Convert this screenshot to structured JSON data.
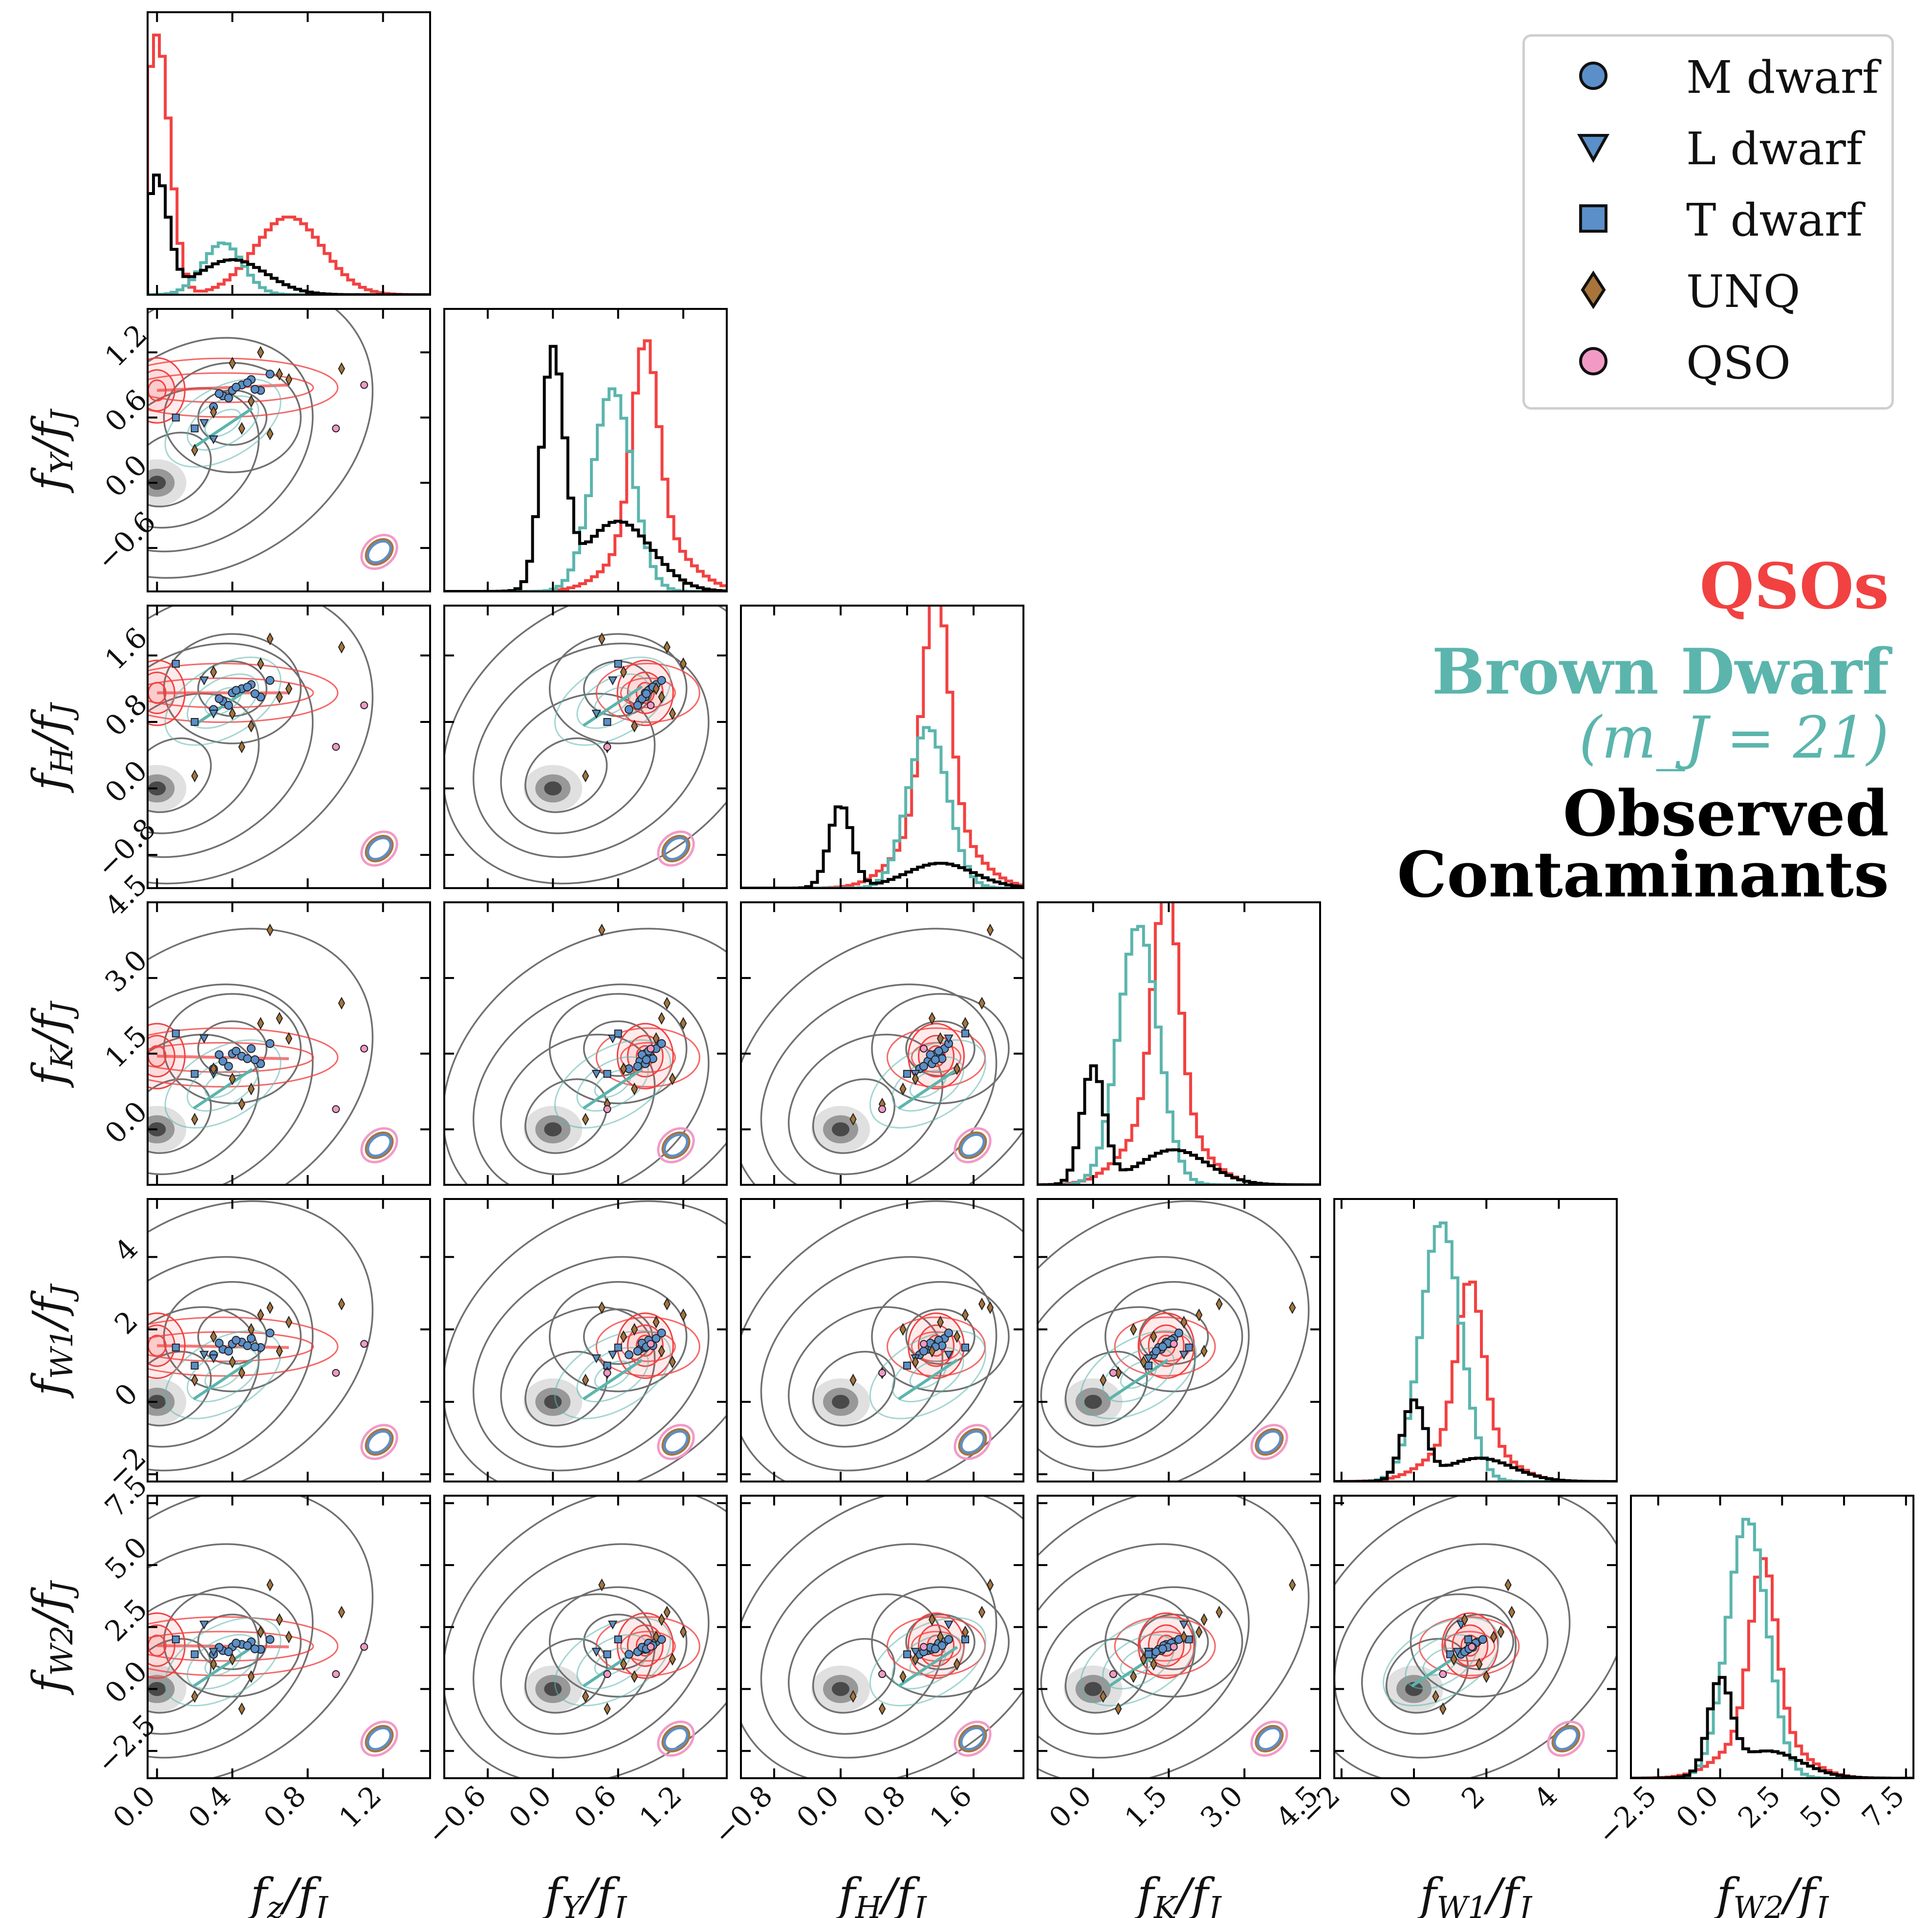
{
  "chart_data": {
    "type": "corner",
    "parameters": [
      {
        "key": "fz",
        "label": "f_z/f_J",
        "range": [
          -0.05,
          1.45
        ],
        "ticks": [
          "0.0",
          "0.4",
          "0.8",
          "1.2"
        ],
        "tick_values": [
          0,
          0.4,
          0.8,
          1.2
        ]
      },
      {
        "key": "fY",
        "label": "f_Y/f_J",
        "range": [
          -1.0,
          1.6
        ],
        "ticks": [
          "−0.6",
          "0.0",
          "0.6",
          "1.2"
        ],
        "tick_values": [
          -0.6,
          0,
          0.6,
          1.2
        ]
      },
      {
        "key": "fH",
        "label": "f_H/f_J",
        "range": [
          -1.2,
          2.2
        ],
        "ticks": [
          "−0.8",
          "0.0",
          "0.8",
          "1.6"
        ],
        "tick_values": [
          -0.8,
          0,
          0.8,
          1.6
        ]
      },
      {
        "key": "fK",
        "label": "f_K/f_J",
        "range": [
          -1.1,
          4.5
        ],
        "ticks": [
          "0.0",
          "1.5",
          "3.0",
          "4.5"
        ],
        "tick_values": [
          0,
          1.5,
          3.0,
          4.5
        ]
      },
      {
        "key": "fW1",
        "label": "f_W1/f_J",
        "range": [
          -2.2,
          5.6
        ],
        "ticks": [
          "−2",
          "0",
          "2",
          "4"
        ],
        "tick_values": [
          -2,
          0,
          2,
          4
        ]
      },
      {
        "key": "fW2",
        "label": "f_W2/f_J",
        "range": [
          -3.6,
          7.8
        ],
        "ticks": [
          "−2.5",
          "0.0",
          "2.5",
          "5.0",
          "7.5"
        ],
        "tick_values": [
          -2.5,
          0,
          2.5,
          5,
          7.5
        ]
      }
    ],
    "axis_labels": {
      "x": [
        "f_z/f_J",
        "f_Y/f_J",
        "f_H/f_J",
        "f_K/f_J",
        "f_W1/f_J",
        "f_W2/f_J"
      ],
      "y": [
        "f_Y/f_J",
        "f_H/f_J",
        "f_K/f_J",
        "f_W1/f_J",
        "f_W2/f_J"
      ]
    },
    "populations": [
      {
        "name": "QSOs",
        "color": "#f24141",
        "center": [
          0.0,
          0.85,
          1.15,
          1.45,
          1.55,
          1.75
        ],
        "secondary_center": [
          0.7,
          0.9,
          1.15,
          1.4,
          1.5,
          1.7
        ],
        "peak_heights": [
          1.0,
          0.75,
          0.9,
          0.9,
          0.6,
          0.65
        ]
      },
      {
        "name": "Brown Dwarf",
        "color": "#5bb5ad",
        "center": [
          0.35,
          0.55,
          1.05,
          0.9,
          0.75,
          1.1
        ],
        "peak_heights": [
          0.2,
          0.78,
          0.62,
          1.0,
          1.0,
          1.0
        ]
      },
      {
        "name": "Observed Contaminants",
        "color": "#000000",
        "center": [
          0.0,
          0.0,
          0.0,
          0.0,
          0.0,
          0.0
        ],
        "secondary_center": [
          0.4,
          0.6,
          1.2,
          1.6,
          1.8,
          1.9
        ],
        "peak_heights": [
          0.45,
          0.9,
          0.32,
          0.45,
          0.3,
          0.35
        ]
      }
    ],
    "scatter_points": [
      {
        "type": "M dwarf",
        "values": [
          0.4,
          0.85,
          1.15,
          1.5,
          1.6,
          1.7
        ]
      },
      {
        "type": "M dwarf",
        "values": [
          0.45,
          0.9,
          1.2,
          1.45,
          1.65,
          1.8
        ]
      },
      {
        "type": "M dwarf",
        "values": [
          0.35,
          0.8,
          1.05,
          1.35,
          1.45,
          1.55
        ]
      },
      {
        "type": "M dwarf",
        "values": [
          0.5,
          0.95,
          1.25,
          1.6,
          1.75,
          1.9
        ]
      },
      {
        "type": "M dwarf",
        "values": [
          0.3,
          0.7,
          0.95,
          1.2,
          1.3,
          1.4
        ]
      },
      {
        "type": "M dwarf",
        "values": [
          0.55,
          0.85,
          1.1,
          1.3,
          1.5,
          1.6
        ]
      },
      {
        "type": "M dwarf",
        "values": [
          0.42,
          0.88,
          1.18,
          1.55,
          1.7,
          1.85
        ]
      },
      {
        "type": "M dwarf",
        "values": [
          0.38,
          0.78,
          1.0,
          1.25,
          1.4,
          1.5
        ]
      },
      {
        "type": "M dwarf",
        "values": [
          0.6,
          1.0,
          1.3,
          1.7,
          1.9,
          2.0
        ]
      },
      {
        "type": "M dwarf",
        "values": [
          0.48,
          0.92,
          1.22,
          1.4,
          1.55,
          1.75
        ]
      },
      {
        "type": "M dwarf",
        "values": [
          0.33,
          0.82,
          1.08,
          1.48,
          1.62,
          1.68
        ]
      },
      {
        "type": "M dwarf",
        "values": [
          0.52,
          0.86,
          1.14,
          1.38,
          1.52,
          1.62
        ]
      },
      {
        "type": "L dwarf",
        "values": [
          0.3,
          0.4,
          0.9,
          1.1,
          1.2,
          1.5
        ]
      },
      {
        "type": "L dwarf",
        "values": [
          0.25,
          0.55,
          1.3,
          1.8,
          1.3,
          2.6
        ]
      },
      {
        "type": "T dwarf",
        "values": [
          0.1,
          0.6,
          1.5,
          1.9,
          1.5,
          2.0
        ]
      },
      {
        "type": "T dwarf",
        "values": [
          0.2,
          0.5,
          0.8,
          1.1,
          1.0,
          1.4
        ]
      },
      {
        "type": "UNQ",
        "values": [
          0.55,
          1.2,
          1.5,
          2.1,
          2.4,
          2.3
        ]
      },
      {
        "type": "UNQ",
        "values": [
          0.2,
          0.3,
          0.15,
          0.2,
          0.6,
          -0.3
        ]
      },
      {
        "type": "UNQ",
        "values": [
          0.6,
          0.45,
          1.8,
          3.95,
          2.6,
          4.2
        ]
      },
      {
        "type": "UNQ",
        "values": [
          0.98,
          1.05,
          1.7,
          2.5,
          2.7,
          3.1
        ]
      },
      {
        "type": "UNQ",
        "values": [
          0.3,
          0.65,
          1.4,
          1.2,
          1.8,
          1.0
        ]
      },
      {
        "type": "UNQ",
        "values": [
          0.5,
          0.75,
          0.75,
          0.8,
          2.0,
          0.5
        ]
      },
      {
        "type": "UNQ",
        "values": [
          0.65,
          1.0,
          1.1,
          2.2,
          1.4,
          2.8
        ]
      },
      {
        "type": "UNQ",
        "values": [
          0.45,
          0.5,
          0.5,
          0.5,
          0.8,
          -0.8
        ]
      },
      {
        "type": "UNQ",
        "values": [
          0.7,
          0.95,
          1.2,
          1.8,
          2.2,
          2.1
        ]
      },
      {
        "type": "UNQ",
        "values": [
          0.4,
          1.1,
          0.9,
          1.0,
          1.1,
          1.2
        ]
      },
      {
        "type": "QSO",
        "values": [
          1.1,
          0.9,
          1.0,
          1.6,
          1.6,
          1.7
        ]
      },
      {
        "type": "QSO",
        "values": [
          0.95,
          0.5,
          0.5,
          0.4,
          0.8,
          0.6
        ]
      }
    ],
    "legend": {
      "placement": "top-right",
      "entries": [
        {
          "label": "M dwarf",
          "marker": "circle",
          "color": "#5b8fc9"
        },
        {
          "label": "L dwarf",
          "marker": "triangle-down",
          "color": "#5b8fc9"
        },
        {
          "label": "T dwarf",
          "marker": "square",
          "color": "#5b8fc9"
        },
        {
          "label": "UNQ",
          "marker": "diamond",
          "color": "#a8743a"
        },
        {
          "label": "QSO",
          "marker": "circle",
          "color": "#f29ac6"
        }
      ]
    }
  },
  "figure_title": {
    "line1": "QSOs",
    "line2": "Brown Dwarf",
    "line3": "(m_J = 21)",
    "line4": "Observed",
    "line5": "Contaminants"
  },
  "colors": {
    "qso": "#f24141",
    "brown_dwarf": "#5bb5ad",
    "observed": "#000000",
    "gray_contour": "#707070",
    "mdwarf": "#5b8fc9",
    "unq": "#a8743a",
    "qso_point": "#f29ac6"
  }
}
